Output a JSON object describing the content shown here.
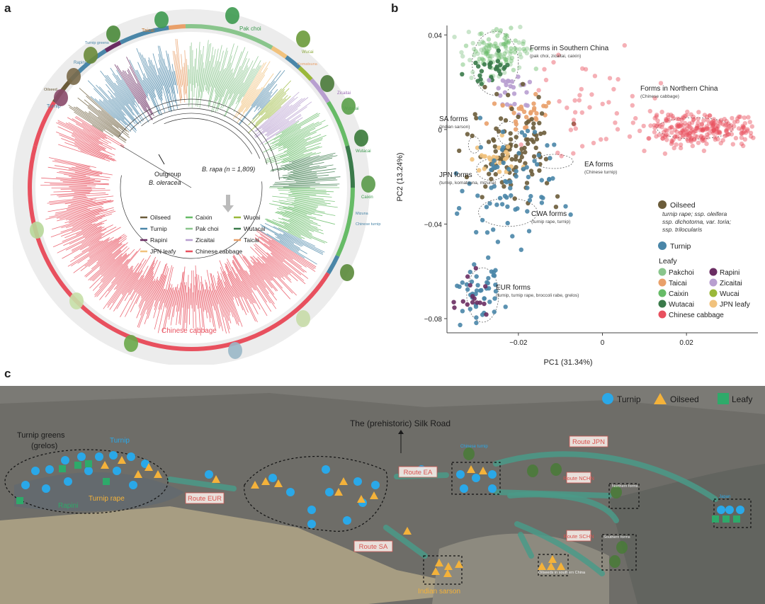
{
  "panels": {
    "a": "a",
    "b": "b",
    "c": "c"
  },
  "colors": {
    "oilseed": "#6b5c3a",
    "turnip": "#4a86a8",
    "rapini": "#6a2d62",
    "jpn_leafy": "#f1c27d",
    "caixin": "#66bb66",
    "pakchoi": "#89c58c",
    "zicaitai": "#b89fd0",
    "chinese_cabbage": "#e8505e",
    "wucai": "#9ab83a",
    "wutacai": "#3a7a4a",
    "taicai": "#e9a06a",
    "map_circle": "#2aa8e8",
    "map_triangle": "#f4b23a",
    "map_square": "#2eaa6a",
    "route_arrow": "#4a9a88",
    "route_label": "#d9534f"
  },
  "tree": {
    "outgroup_label": "Outgroup",
    "outgroup_species": "B. oleracea",
    "b_rapa_label": "B. rapa (n = 1,809)",
    "chinese_cabbage_arc": "Chinese cabbage",
    "outer_labels": {
      "taicai": "Taicai",
      "pakchoi": "Pak choi",
      "turnip": "Turnip",
      "rapini": "Rapini",
      "wucai": "Wucai",
      "zicaitai": "Zicaitai",
      "wutacai": "Wutacai",
      "caixin": "Caixin",
      "chinese_turnip": "Chinese turnip",
      "oilseed": "Oilseed",
      "turnip_greens": "Turnip greens",
      "mizuna": "Mizuna",
      "komatsuna": "Komatsuna"
    },
    "legend": [
      {
        "key": "oilseed",
        "label": "Oilseed"
      },
      {
        "key": "caixin",
        "label": "Caixin"
      },
      {
        "key": "wucai",
        "label": "Wucai"
      },
      {
        "key": "turnip",
        "label": "Turnip"
      },
      {
        "key": "pakchoi",
        "label": "Pak choi"
      },
      {
        "key": "wutacai",
        "label": "Wutacai"
      },
      {
        "key": "rapini",
        "label": "Rapini"
      },
      {
        "key": "zicaitai",
        "label": "Zicaitai"
      },
      {
        "key": "taicai",
        "label": "Taicai"
      },
      {
        "key": "jpn_leafy",
        "label": "JPN leafy"
      },
      {
        "key": "chinese_cabbage",
        "label": "Chinese cabbage"
      }
    ]
  },
  "chart_data": {
    "type": "scatter",
    "xlabel": "PC1 (31.34%)",
    "ylabel": "PC2 (13.24%)",
    "xlim": [
      -0.037,
      0.037
    ],
    "ylim": [
      -0.086,
      0.044
    ],
    "xticks": [
      {
        "v": -0.02,
        "label": "−0.02"
      },
      {
        "v": 0,
        "label": "0"
      },
      {
        "v": 0.02,
        "label": "0.02"
      }
    ],
    "yticks": [
      {
        "v": 0.04,
        "label": "0.04"
      },
      {
        "v": 0,
        "label": "0"
      },
      {
        "v": -0.04,
        "label": "−0.04"
      },
      {
        "v": -0.08,
        "label": "−0.08"
      }
    ],
    "groups": [
      {
        "key": "pakchoi",
        "cx": -0.026,
        "cy": 0.033,
        "sx": 0.004,
        "sy": 0.006,
        "n": 70
      },
      {
        "key": "caixin",
        "cx": -0.025,
        "cy": 0.034,
        "sx": 0.004,
        "sy": 0.005,
        "n": 60
      },
      {
        "key": "wutacai",
        "cx": -0.027,
        "cy": 0.026,
        "sx": 0.003,
        "sy": 0.004,
        "n": 25
      },
      {
        "key": "zicaitai",
        "cx": -0.022,
        "cy": 0.016,
        "sx": 0.003,
        "sy": 0.004,
        "n": 25
      },
      {
        "key": "taicai",
        "cx": -0.018,
        "cy": 0.006,
        "sx": 0.004,
        "sy": 0.004,
        "n": 30
      },
      {
        "key": "oilseed",
        "cx": -0.021,
        "cy": -0.008,
        "sx": 0.005,
        "sy": 0.01,
        "n": 110
      },
      {
        "key": "jpn_leafy",
        "cx": -0.024,
        "cy": -0.013,
        "sx": 0.003,
        "sy": 0.004,
        "n": 25
      },
      {
        "key": "turnip",
        "cx": -0.022,
        "cy": -0.025,
        "sx": 0.006,
        "sy": 0.012,
        "n": 75
      },
      {
        "key": "turnip",
        "cx": -0.029,
        "cy": -0.07,
        "sx": 0.003,
        "sy": 0.006,
        "n": 45
      },
      {
        "key": "rapini",
        "cx": -0.03,
        "cy": -0.07,
        "sx": 0.002,
        "sy": 0.005,
        "n": 15
      },
      {
        "key": "chinese_cabbage",
        "cx": 0.023,
        "cy": 0.0,
        "sx": 0.007,
        "sy": 0.0035,
        "n": 260
      },
      {
        "key": "chinese_cabbage",
        "cx": -0.002,
        "cy": 0.012,
        "sx": 0.008,
        "sy": 0.012,
        "n": 45
      }
    ],
    "annotations": [
      {
        "title": "Forms in Southern China",
        "sub": "(pak choi, zicaitai, caixin)"
      },
      {
        "title": "Forms in Northern China",
        "sub": "(Chinese cabbage)"
      },
      {
        "title": "SA forms",
        "sub": "(Indian sarson)"
      },
      {
        "title": "EA forms",
        "sub": "(Chinese turnip)"
      },
      {
        "title": "JPN forms",
        "sub": "(turnip, komatsuna, mizuna)"
      },
      {
        "title": "CWA forms",
        "sub": "(turnip rape, turnip)"
      },
      {
        "title": "EUR forms",
        "sub": "(turnip, turnip rape, broccoli rabe, grelos)"
      }
    ],
    "legend": {
      "oilseed_title": "Oilseed",
      "oilseed_sub1": "turnip rape; ssp. oleifera",
      "oilseed_sub2": "ssp. dichotoma, var. toria;",
      "oilseed_sub3": "ssp. trilocularis",
      "turnip": "Turnip",
      "leafy": "Leafy",
      "items": [
        {
          "key": "pakchoi",
          "label": "Pakchoi"
        },
        {
          "key": "rapini",
          "label": "Rapini"
        },
        {
          "key": "taicai",
          "label": "Taicai"
        },
        {
          "key": "zicaitai",
          "label": "Zicaitai"
        },
        {
          "key": "caixin",
          "label": "Caixin"
        },
        {
          "key": "wucai",
          "label": "Wucai"
        },
        {
          "key": "wutacai",
          "label": "Wutacai"
        },
        {
          "key": "jpn_leafy",
          "label": "JPN leafy"
        },
        {
          "key": "chinese_cabbage",
          "label": "Chinese cabbage"
        }
      ]
    }
  },
  "map": {
    "legend": {
      "turnip": "Turnip",
      "oilseed": "Oilseed",
      "leafy": "Leafy"
    },
    "silk_road": "The (prehistoric) Silk Road",
    "turnip_greens": "Turnip greens",
    "grelos": "(grelos)",
    "turnip_label": "Turnip",
    "rapini": "Rapini",
    "turnip_rape": "Turnip rape",
    "routes": {
      "eur": "Route EUR",
      "ea": "Route EA",
      "sa": "Route SA",
      "jpn": "Route JPN",
      "nchn": "Route NCHN",
      "schn": "Route SCHN"
    },
    "indian_sarson": "Indian sarson",
    "chinese_turnip": "Chinese turnip",
    "northern_forms": "Northern forms",
    "southern_forms": "Southern forms",
    "oilseeds_southern": "Oilseeds in southern China",
    "japan": "Japan"
  }
}
